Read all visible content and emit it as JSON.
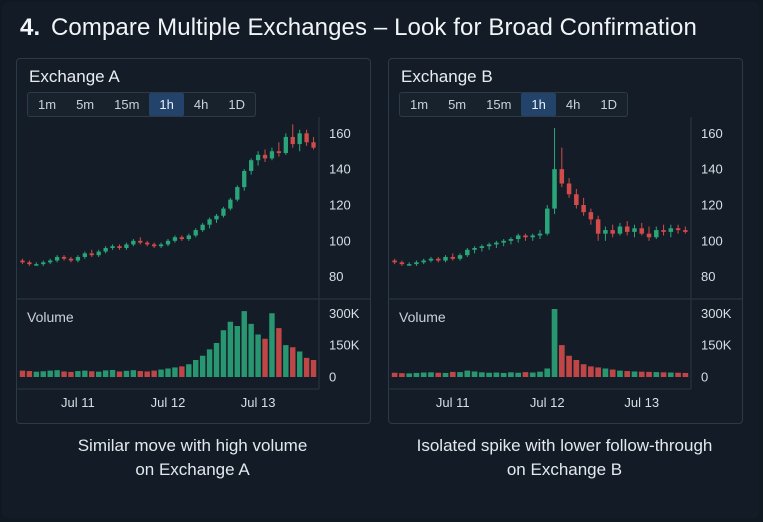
{
  "page": {
    "number": "4.",
    "title": "Compare Multiple Exchanges – Look for Broad Confirmation"
  },
  "timeframes": [
    "1m",
    "5m",
    "15m",
    "1h",
    "4h",
    "1D"
  ],
  "active_timeframe": "1h",
  "colors": {
    "up": "#2aa57a",
    "down": "#d24b4b",
    "background": "#131c26"
  },
  "chart_data": [
    {
      "type": "candlestick",
      "title": "Exchange A",
      "caption": [
        "Similar move with high volume",
        "on Exchange A"
      ],
      "x_ticks": [
        {
          "label": "Jul 11",
          "index": 8
        },
        {
          "label": "Jul 12",
          "index": 21
        },
        {
          "label": "Jul 13",
          "index": 34
        }
      ],
      "price_axis": {
        "ticks": [
          "160",
          "140",
          "120",
          "100",
          "80"
        ],
        "ylim": [
          72,
          168
        ]
      },
      "volume_axis": {
        "label": "Volume",
        "ticks": [
          "300K",
          "150K",
          "0"
        ],
        "ylim": [
          0,
          320000
        ]
      },
      "ohlc": [
        [
          89,
          90,
          87,
          88
        ],
        [
          88,
          89,
          86,
          87
        ],
        [
          87,
          88,
          86,
          87
        ],
        [
          87,
          89,
          86,
          88
        ],
        [
          88,
          90,
          87,
          89
        ],
        [
          89,
          92,
          88,
          91
        ],
        [
          91,
          92,
          89,
          90
        ],
        [
          90,
          91,
          88,
          89
        ],
        [
          89,
          92,
          88,
          91
        ],
        [
          91,
          94,
          90,
          93
        ],
        [
          93,
          95,
          91,
          92
        ],
        [
          92,
          95,
          91,
          94
        ],
        [
          94,
          97,
          93,
          96
        ],
        [
          96,
          98,
          95,
          97
        ],
        [
          97,
          98,
          95,
          96
        ],
        [
          96,
          99,
          95,
          98
        ],
        [
          98,
          101,
          97,
          100
        ],
        [
          100,
          102,
          98,
          99
        ],
        [
          99,
          100,
          97,
          98
        ],
        [
          98,
          99,
          96,
          97
        ],
        [
          97,
          99,
          96,
          98
        ],
        [
          98,
          101,
          97,
          100
        ],
        [
          100,
          103,
          99,
          102
        ],
        [
          102,
          103,
          100,
          101
        ],
        [
          101,
          104,
          100,
          103
        ],
        [
          103,
          107,
          102,
          106
        ],
        [
          106,
          110,
          105,
          109
        ],
        [
          109,
          113,
          107,
          112
        ],
        [
          112,
          115,
          110,
          114
        ],
        [
          114,
          119,
          113,
          118
        ],
        [
          118,
          124,
          117,
          123
        ],
        [
          123,
          131,
          122,
          130
        ],
        [
          130,
          140,
          128,
          139
        ],
        [
          139,
          146,
          137,
          145
        ],
        [
          145,
          150,
          142,
          148
        ],
        [
          148,
          151,
          144,
          146
        ],
        [
          146,
          152,
          145,
          150
        ],
        [
          150,
          155,
          147,
          149
        ],
        [
          149,
          160,
          148,
          158
        ],
        [
          158,
          165,
          152,
          154
        ],
        [
          154,
          162,
          150,
          160
        ],
        [
          160,
          162,
          153,
          155
        ],
        [
          155,
          158,
          151,
          152
        ]
      ],
      "volume": [
        30000,
        28000,
        25000,
        27000,
        30000,
        32000,
        26000,
        24000,
        28000,
        30000,
        27000,
        25000,
        31000,
        33000,
        26000,
        29000,
        32000,
        28000,
        26000,
        30000,
        35000,
        40000,
        45000,
        50000,
        60000,
        80000,
        100000,
        130000,
        160000,
        220000,
        260000,
        240000,
        310000,
        250000,
        200000,
        180000,
        300000,
        230000,
        150000,
        140000,
        120000,
        90000,
        80000
      ]
    },
    {
      "type": "candlestick",
      "title": "Exchange B",
      "caption": [
        "Isolated spike with lower follow-through",
        "on Exchange B"
      ],
      "x_ticks": [
        {
          "label": "Jul 11",
          "index": 8
        },
        {
          "label": "Jul 12",
          "index": 21
        },
        {
          "label": "Jul 13",
          "index": 34
        }
      ],
      "price_axis": {
        "ticks": [
          "160",
          "140",
          "120",
          "100",
          "80"
        ],
        "ylim": [
          72,
          168
        ]
      },
      "volume_axis": {
        "label": "Volume",
        "ticks": [
          "300K",
          "150K",
          "0"
        ],
        "ylim": [
          0,
          320000
        ]
      },
      "ohlc": [
        [
          89,
          90,
          87,
          88
        ],
        [
          88,
          89,
          86,
          87
        ],
        [
          87,
          88,
          86,
          87
        ],
        [
          87,
          89,
          86,
          88
        ],
        [
          88,
          90,
          87,
          89
        ],
        [
          89,
          91,
          88,
          90
        ],
        [
          90,
          91,
          88,
          89
        ],
        [
          89,
          92,
          88,
          91
        ],
        [
          91,
          93,
          89,
          90
        ],
        [
          90,
          93,
          89,
          92
        ],
        [
          92,
          96,
          91,
          95
        ],
        [
          95,
          97,
          93,
          96
        ],
        [
          96,
          98,
          94,
          97
        ],
        [
          97,
          99,
          95,
          98
        ],
        [
          98,
          100,
          96,
          99
        ],
        [
          99,
          101,
          97,
          100
        ],
        [
          100,
          102,
          98,
          101
        ],
        [
          101,
          104,
          99,
          103
        ],
        [
          103,
          104,
          100,
          102
        ],
        [
          102,
          104,
          100,
          103
        ],
        [
          103,
          106,
          101,
          104
        ],
        [
          104,
          120,
          103,
          118
        ],
        [
          118,
          163,
          115,
          140
        ],
        [
          140,
          152,
          130,
          132
        ],
        [
          132,
          135,
          124,
          126
        ],
        [
          126,
          129,
          118,
          120
        ],
        [
          120,
          124,
          114,
          116
        ],
        [
          116,
          118,
          109,
          112
        ],
        [
          112,
          114,
          100,
          104
        ],
        [
          104,
          108,
          100,
          106
        ],
        [
          106,
          109,
          102,
          104
        ],
        [
          104,
          110,
          103,
          108
        ],
        [
          108,
          111,
          103,
          105
        ],
        [
          105,
          109,
          102,
          107
        ],
        [
          107,
          110,
          103,
          104
        ],
        [
          104,
          108,
          100,
          102
        ],
        [
          102,
          108,
          101,
          106
        ],
        [
          106,
          109,
          103,
          105
        ],
        [
          105,
          109,
          102,
          107
        ],
        [
          107,
          109,
          104,
          106
        ],
        [
          106,
          108,
          104,
          105
        ]
      ],
      "volume": [
        20000,
        18000,
        17000,
        19000,
        21000,
        22000,
        20000,
        19000,
        24000,
        23000,
        30000,
        26000,
        22000,
        20000,
        21000,
        19000,
        22000,
        20000,
        23000,
        21000,
        25000,
        40000,
        320000,
        150000,
        100000,
        80000,
        60000,
        50000,
        45000,
        40000,
        35000,
        30000,
        28000,
        26000,
        25000,
        24000,
        23000,
        22000,
        21000,
        20000,
        19000
      ]
    }
  ]
}
